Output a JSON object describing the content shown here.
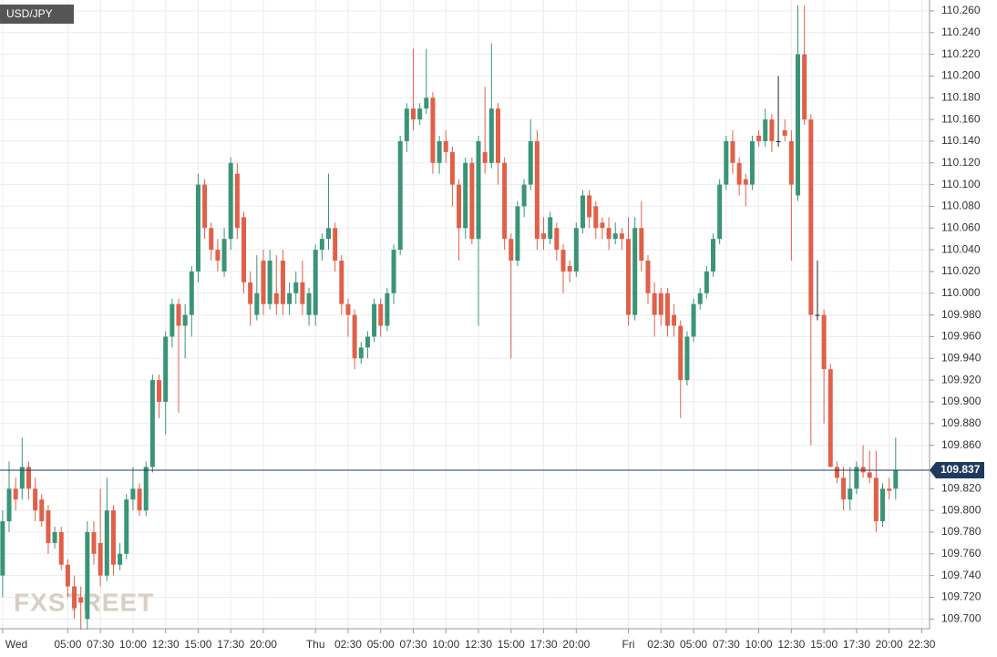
{
  "chart_data": {
    "type": "candlestick",
    "title": "USD/JPY",
    "watermark": "FXSTREET",
    "last_price": {
      "value": 109.837,
      "label": "109.837"
    },
    "x": [
      0,
      0.5,
      1,
      1.5,
      2,
      2.5,
      3,
      3.5,
      4,
      4.5,
      5,
      5.5,
      6,
      6.5,
      7,
      7.5,
      8,
      8.5,
      9,
      9.5,
      10,
      10.5,
      11,
      11.5,
      12,
      12.5,
      13,
      13.5,
      14,
      14.5,
      15,
      15.5,
      16,
      16.5,
      17,
      17.5,
      18,
      18.5,
      19,
      19.5,
      20,
      20.5,
      21,
      21.5,
      22,
      22.5,
      23,
      23.5,
      24,
      24.5,
      25,
      25.5,
      26,
      26.5,
      27,
      27.5,
      28,
      28.5,
      29,
      29.5,
      30,
      30.5,
      31,
      31.5,
      32,
      32.5,
      33,
      33.5,
      34,
      34.5,
      35,
      35.5,
      36,
      36.5,
      37,
      37.5,
      38,
      38.5,
      39,
      39.5,
      40,
      40.5,
      41,
      41.5,
      42,
      42.5,
      43,
      43.5,
      44,
      44.5,
      45,
      45.5,
      46,
      46.5,
      47,
      47.5,
      48,
      48.5,
      49,
      49.5,
      50,
      50.5,
      51,
      51.5,
      52,
      52.5,
      53,
      53.5,
      54,
      54.5,
      55,
      55.5,
      56,
      56.5,
      57,
      57.5,
      58,
      58.5,
      59,
      59.5,
      60,
      60.5,
      61,
      61.5,
      62,
      62.5,
      63,
      63.5,
      64,
      64.5,
      65,
      65.5,
      66,
      66.5,
      67,
      67.5,
      68,
      68.5
    ],
    "open": [
      109.74,
      109.79,
      109.82,
      109.82,
      109.84,
      109.82,
      109.81,
      109.8,
      109.77,
      109.78,
      109.75,
      109.73,
      109.72,
      109.7,
      109.78,
      109.77,
      109.74,
      109.8,
      109.75,
      109.76,
      109.81,
      109.82,
      109.8,
      109.84,
      109.92,
      109.9,
      109.96,
      109.99,
      109.97,
      109.98,
      110.02,
      110.1,
      110.06,
      110.04,
      110.02,
      110.05,
      110.11,
      110.07,
      110.01,
      109.98,
      110.03,
      109.99,
      110.0,
      110.03,
      109.99,
      110.0,
      110.01,
      109.98,
      109.98,
      110.04,
      110.05,
      110.06,
      110.03,
      109.99,
      109.98,
      109.94,
      109.95,
      109.96,
      109.99,
      109.97,
      110.0,
      110.04,
      110.14,
      110.17,
      110.16,
      110.17,
      110.18,
      110.12,
      110.14,
      110.13,
      110.1,
      110.06,
      110.12,
      110.05,
      110.13,
      110.12,
      110.17,
      110.12,
      110.05,
      110.03,
      110.08,
      110.1,
      110.14,
      110.055,
      110.05,
      110.06,
      110.04,
      110.025,
      110.02,
      110.06,
      110.09,
      110.08,
      110.065,
      110.06,
      110.05,
      110.055,
      110.05,
      109.98,
      110.06,
      110.03,
      110.0,
      110.0,
      110.0,
      109.98,
      109.97,
      109.92,
      109.96,
      109.99,
      110.0,
      110.02,
      110.05,
      110.1,
      110.14,
      110.12,
      110.105,
      110.1,
      110.145,
      110.14,
      110.16,
      110.14,
      110.15,
      110.14,
      110.09,
      110.22,
      110.16,
      109.98,
      109.98,
      109.93,
      109.84,
      109.83,
      109.81,
      109.82,
      109.84,
      109.835,
      109.83,
      109.79,
      109.82,
      109.82
    ],
    "high": [
      109.8,
      109.845,
      109.83,
      109.867,
      109.845,
      109.83,
      109.815,
      109.805,
      109.785,
      109.785,
      109.755,
      109.74,
      109.73,
      109.79,
      109.79,
      109.82,
      109.83,
      109.805,
      109.77,
      109.815,
      109.84,
      109.825,
      109.845,
      109.925,
      109.925,
      109.965,
      109.995,
      109.995,
      109.99,
      110.025,
      110.11,
      110.105,
      110.065,
      110.05,
      110.06,
      110.125,
      110.12,
      110.075,
      110.02,
      110.035,
      110.04,
      110.04,
      110.035,
      110.04,
      110.01,
      110.02,
      110.03,
      110.005,
      110.045,
      110.055,
      110.11,
      110.065,
      110.035,
      109.995,
      109.985,
      109.955,
      109.965,
      109.995,
      109.995,
      110.005,
      110.045,
      110.145,
      110.175,
      110.225,
      110.175,
      110.225,
      110.185,
      110.145,
      110.15,
      110.135,
      110.105,
      110.125,
      110.125,
      110.145,
      110.19,
      110.23,
      110.175,
      110.125,
      110.055,
      110.085,
      110.105,
      110.16,
      110.15,
      110.07,
      110.075,
      110.065,
      110.045,
      110.03,
      110.065,
      110.095,
      110.095,
      110.085,
      110.07,
      110.07,
      110.065,
      110.06,
      110.07,
      110.07,
      110.085,
      110.035,
      110.01,
      110.005,
      110.005,
      109.99,
      109.975,
      109.965,
      109.995,
      110.005,
      110.025,
      110.055,
      110.105,
      110.145,
      110.15,
      110.125,
      110.11,
      110.145,
      110.15,
      110.17,
      110.165,
      110.2,
      110.16,
      110.15,
      110.265,
      110.265,
      110.165,
      110.03,
      109.985,
      109.935,
      109.845,
      109.84,
      109.84,
      109.845,
      109.86,
      109.855,
      109.855,
      109.825,
      109.83,
      109.867
    ],
    "low": [
      109.72,
      109.78,
      109.8,
      109.81,
      109.81,
      109.79,
      109.785,
      109.76,
      109.765,
      109.745,
      109.72,
      109.7,
      109.69,
      109.69,
      109.75,
      109.73,
      109.735,
      109.74,
      109.745,
      109.755,
      109.8,
      109.795,
      109.795,
      109.835,
      109.885,
      109.87,
      109.95,
      109.89,
      109.94,
      109.96,
      110.01,
      110.05,
      110.03,
      110.02,
      110.015,
      110.04,
      110.05,
      110.0,
      109.97,
      109.975,
      109.98,
      109.985,
      109.98,
      109.98,
      109.98,
      109.99,
      109.98,
      109.97,
      109.97,
      110.03,
      110.04,
      110.02,
      109.98,
      109.96,
      109.93,
      109.935,
      109.94,
      109.955,
      109.96,
      109.965,
      109.99,
      110.035,
      110.13,
      110.15,
      110.155,
      110.165,
      110.11,
      110.11,
      110.12,
      110.08,
      110.03,
      110.05,
      110.045,
      109.97,
      110.11,
      110.115,
      110.1,
      110.04,
      109.94,
      110.025,
      110.07,
      110.095,
      110.04,
      110.04,
      110.045,
      110.03,
      110.0,
      110.01,
      110.015,
      110.055,
      110.06,
      110.05,
      110.05,
      110.04,
      110.045,
      110.04,
      109.97,
      109.975,
      110.02,
      109.99,
      109.96,
      109.97,
      109.96,
      109.96,
      109.885,
      109.915,
      109.955,
      109.985,
      109.995,
      110.015,
      110.045,
      110.095,
      110.11,
      110.09,
      110.08,
      110.095,
      110.135,
      110.135,
      110.13,
      110.135,
      110.14,
      110.03,
      110.085,
      110.155,
      109.86,
      109.975,
      109.88,
      109.84,
      109.825,
      109.8,
      109.8,
      109.815,
      109.83,
      109.825,
      109.78,
      109.785,
      109.81,
      109.81
    ],
    "close": [
      109.79,
      109.82,
      109.81,
      109.84,
      109.82,
      109.8,
      109.79,
      109.77,
      109.78,
      109.75,
      109.73,
      109.71,
      109.715,
      109.78,
      109.76,
      109.74,
      109.8,
      109.75,
      109.76,
      109.81,
      109.82,
      109.8,
      109.84,
      109.92,
      109.9,
      109.96,
      109.99,
      109.97,
      109.98,
      110.02,
      110.1,
      110.06,
      110.04,
      110.03,
      110.05,
      110.12,
      110.06,
      110.01,
      109.99,
      110.0,
      109.99,
      110.03,
      109.99,
      109.99,
      110.0,
      110.01,
      109.99,
      110.0,
      110.04,
      110.05,
      110.06,
      110.03,
      109.99,
      109.98,
      109.94,
      109.95,
      109.96,
      109.99,
      109.97,
      110.0,
      110.04,
      110.14,
      110.17,
      110.16,
      110.17,
      110.18,
      110.12,
      110.14,
      110.13,
      110.1,
      110.06,
      110.12,
      110.05,
      110.14,
      110.12,
      110.17,
      110.12,
      110.05,
      110.03,
      110.08,
      110.1,
      110.14,
      110.05,
      110.05,
      110.07,
      110.04,
      110.02,
      110.02,
      110.06,
      110.09,
      110.07,
      110.06,
      110.06,
      110.05,
      110.055,
      110.05,
      109.98,
      110.06,
      110.03,
      110.0,
      109.98,
      109.98,
      109.97,
      109.97,
      109.92,
      109.96,
      109.99,
      110.0,
      110.02,
      110.05,
      110.1,
      110.14,
      110.12,
      110.1,
      110.1,
      110.14,
      110.14,
      110.16,
      110.14,
      110.14,
      110.145,
      110.1,
      110.22,
      110.16,
      109.98,
      109.98,
      109.93,
      109.84,
      109.83,
      109.81,
      109.82,
      109.84,
      109.835,
      109.83,
      109.79,
      109.82,
      109.818,
      109.837
    ],
    "up_color": "#3a9478",
    "down_color": "#e0604a",
    "flat_color": "#222222",
    "last_color": "#1f3a5f",
    "xlim": [
      -0.2,
      71.1
    ],
    "ylim": [
      109.691,
      110.27
    ],
    "grid": true,
    "xticks": [
      {
        "value": 0,
        "label": "Wed"
      },
      {
        "value": 5,
        "label": "05:00"
      },
      {
        "value": 7.5,
        "label": "07:30"
      },
      {
        "value": 10,
        "label": "10:00"
      },
      {
        "value": 12.5,
        "label": "12:30"
      },
      {
        "value": 15,
        "label": "15:00"
      },
      {
        "value": 17.5,
        "label": "17:30"
      },
      {
        "value": 20,
        "label": "20:00"
      },
      {
        "value": 24,
        "label": "Thu"
      },
      {
        "value": 26.5,
        "label": "02:30"
      },
      {
        "value": 29,
        "label": "05:00"
      },
      {
        "value": 31.5,
        "label": "07:30"
      },
      {
        "value": 34,
        "label": "10:00"
      },
      {
        "value": 36.5,
        "label": "12:30"
      },
      {
        "value": 39,
        "label": "15:00"
      },
      {
        "value": 41.5,
        "label": "17:30"
      },
      {
        "value": 44,
        "label": "20:00"
      },
      {
        "value": 48,
        "label": "Fri"
      },
      {
        "value": 50.5,
        "label": "02:30"
      },
      {
        "value": 53,
        "label": "05:00"
      },
      {
        "value": 55.5,
        "label": "07:30"
      },
      {
        "value": 58,
        "label": "10:00"
      },
      {
        "value": 60.5,
        "label": "12:30"
      },
      {
        "value": 63,
        "label": "15:00"
      },
      {
        "value": 65.5,
        "label": "17:30"
      },
      {
        "value": 68,
        "label": "20:00"
      },
      {
        "value": 70.5,
        "label": "22:30"
      }
    ],
    "yticks": [
      {
        "value": 109.7,
        "label": "109.700"
      },
      {
        "value": 109.72,
        "label": "109.720"
      },
      {
        "value": 109.74,
        "label": "109.740"
      },
      {
        "value": 109.76,
        "label": "109.760"
      },
      {
        "value": 109.78,
        "label": "109.780"
      },
      {
        "value": 109.8,
        "label": "109.800"
      },
      {
        "value": 109.82,
        "label": "109.820"
      },
      {
        "value": 109.86,
        "label": "109.860"
      },
      {
        "value": 109.88,
        "label": "109.880"
      },
      {
        "value": 109.9,
        "label": "109.900"
      },
      {
        "value": 109.92,
        "label": "109.920"
      },
      {
        "value": 109.94,
        "label": "109.940"
      },
      {
        "value": 109.96,
        "label": "109.960"
      },
      {
        "value": 109.98,
        "label": "109.980"
      },
      {
        "value": 110.0,
        "label": "110.000"
      },
      {
        "value": 110.02,
        "label": "110.020"
      },
      {
        "value": 110.04,
        "label": "110.040"
      },
      {
        "value": 110.06,
        "label": "110.060"
      },
      {
        "value": 110.08,
        "label": "110.080"
      },
      {
        "value": 110.1,
        "label": "110.100"
      },
      {
        "value": 110.12,
        "label": "110.120"
      },
      {
        "value": 110.14,
        "label": "110.140"
      },
      {
        "value": 110.16,
        "label": "110.160"
      },
      {
        "value": 110.18,
        "label": "110.180"
      },
      {
        "value": 110.2,
        "label": "110.200"
      },
      {
        "value": 110.22,
        "label": "110.220"
      },
      {
        "value": 110.24,
        "label": "110.240"
      },
      {
        "value": 110.26,
        "label": "110.260"
      }
    ]
  }
}
